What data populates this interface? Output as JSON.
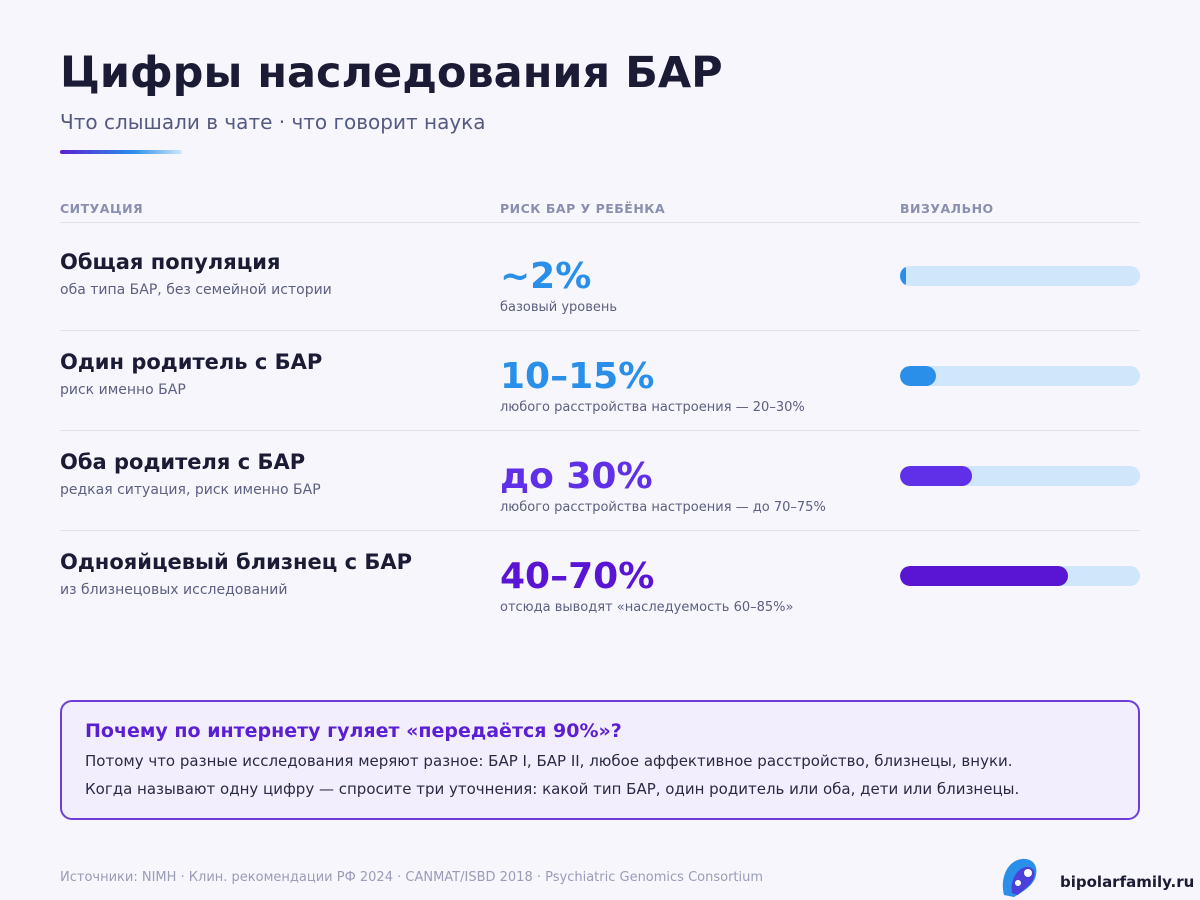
{
  "header": {
    "title": "Цифры наследования БАР",
    "subtitle": "Что слышали в чате · что говорит наука"
  },
  "table": {
    "columns": [
      "СИТУАЦИЯ",
      "РИСК БАР У РЕБЁНКА",
      "ВИЗУАЛЬНО"
    ],
    "bar_range": [
      0,
      100
    ],
    "rows": [
      {
        "title": "Общая популяция",
        "subtitle": "оба типа БАР, без семейной истории",
        "risk": "~2%",
        "note": "базовый уровень",
        "bar": 2,
        "color": "#2a8fe8"
      },
      {
        "title": "Один родитель с БАР",
        "subtitle": "риск именно БАР",
        "risk": "10–15%",
        "note": "любого расстройства настроения — 20–30%",
        "bar": 15,
        "color": "#2a8fe8"
      },
      {
        "title": "Оба родителя с БАР",
        "subtitle": "редкая ситуация, риск именно БАР",
        "risk": "до 30%",
        "note": "любого расстройства настроения — до 70–75%",
        "bar": 30,
        "color": "#6030e8"
      },
      {
        "title": "Однояйцевый близнец с БАР",
        "subtitle": "из близнецовых исследований",
        "risk": "40–70%",
        "note": "отсюда выводят «наследуемость 60–85%»",
        "bar": 70,
        "color": "#5a14d4"
      }
    ]
  },
  "callout": {
    "title": "Почему по интернету гуляет «передаётся 90%»?",
    "lines": [
      "Потому что разные исследования меряют разное: БАР I, БАР II, любое аффективное расстройство, близнецы, внуки.",
      "Когда называют одну цифру — спросите три уточнения: какой тип БАР, один родитель или оба, дети или близнецы."
    ]
  },
  "footer": {
    "sources": "Источники: NIMH · Клин. рекомендации РФ 2024 · CANMAT/ISBD 2018 · Psychiatric Genomics Consortium",
    "brand": "bipolarfamily.ru"
  }
}
